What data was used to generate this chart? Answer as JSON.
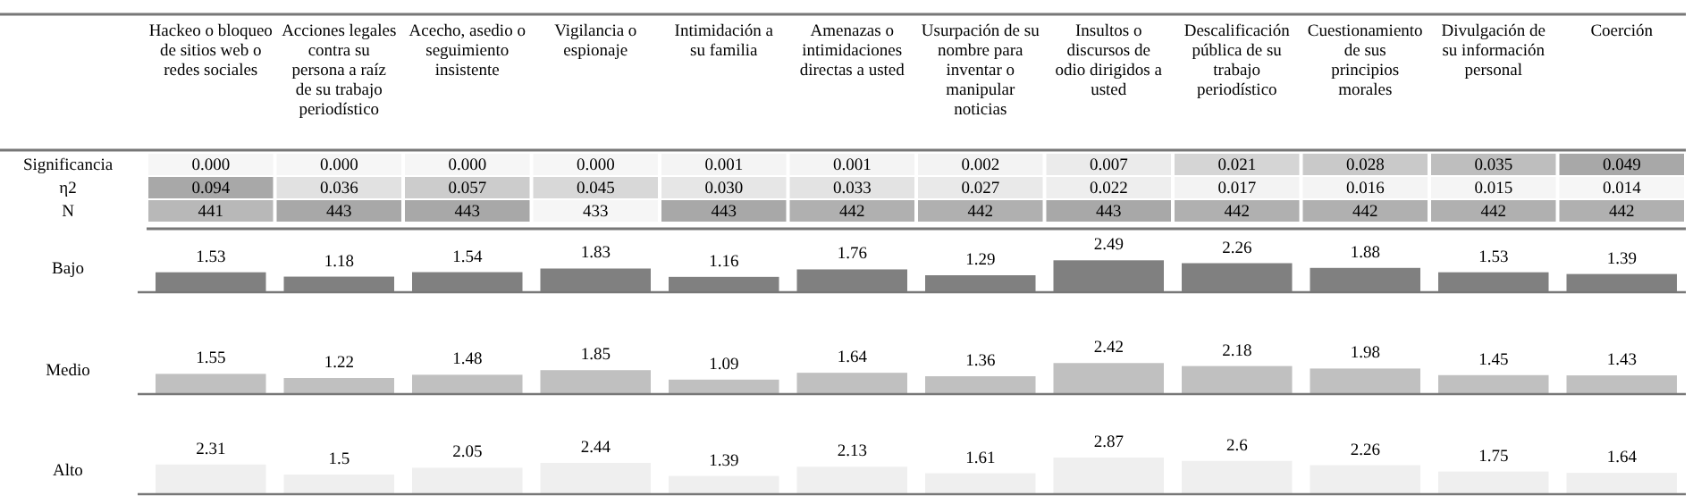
{
  "chart_data": [
    {
      "type": "heatmap",
      "categories": [
        "Hackeo o bloqueo de sitios web o redes sociales",
        "Acciones legales contra su persona a raíz de su trabajo periodístico",
        "Acecho, asedio o seguimiento insistente",
        "Vigilancia o espionaje",
        "Intimidación a su familia",
        "Amenazas o intimidaciones directas a usted",
        "Usurpación de su nombre para inventar o manipular noticias",
        "Insultos o discursos de odio dirigidos a usted",
        "Descalificación pública de su trabajo periodístico",
        "Cuestionamiento de sus principios morales",
        "Divulgación de su información personal",
        "Coerción"
      ],
      "y_categories": [
        "Significancia",
        "η2",
        "N"
      ],
      "cells": [
        [
          0,
          0,
          0,
          0,
          0.001,
          0.001,
          0.002,
          0.007,
          0.021,
          0.028,
          0.035,
          0.049
        ],
        [
          0.094,
          0.036,
          0.057,
          0.045,
          0.03,
          0.033,
          0.027,
          0.022,
          0.017,
          0.016,
          0.015,
          0.014
        ],
        [
          441,
          443,
          443,
          433,
          443,
          442,
          442,
          443,
          442,
          442,
          442,
          442
        ]
      ],
      "cell_labels": [
        [
          "0.000",
          "0.000",
          "0.000",
          "0.000",
          "0.001",
          "0.001",
          "0.002",
          "0.007",
          "0.021",
          "0.028",
          "0.035",
          "0.049"
        ],
        [
          "0.094",
          "0.036",
          "0.057",
          "0.045",
          "0.030",
          "0.033",
          "0.027",
          "0.022",
          "0.017",
          "0.016",
          "0.015",
          "0.014"
        ],
        [
          "441",
          "443",
          "443",
          "433",
          "443",
          "442",
          "442",
          "443",
          "442",
          "442",
          "442",
          "442"
        ]
      ]
    },
    {
      "type": "bar",
      "title": "Bajo",
      "categories": [
        null,
        null,
        null,
        null,
        null,
        null,
        null,
        null,
        null,
        null,
        null,
        null
      ],
      "values": [
        1.53,
        1.18,
        1.54,
        1.83,
        1.16,
        1.76,
        1.29,
        2.49,
        2.26,
        1.88,
        1.53,
        1.39
      ],
      "color": "#808080",
      "data_labels": true
    },
    {
      "type": "bar",
      "title": "Medio",
      "categories": [
        null,
        null,
        null,
        null,
        null,
        null,
        null,
        null,
        null,
        null,
        null,
        null
      ],
      "values": [
        1.55,
        1.22,
        1.48,
        1.85,
        1.09,
        1.64,
        1.36,
        2.42,
        2.18,
        1.98,
        1.45,
        1.43
      ],
      "color": "#c0c0c0",
      "data_labels": true
    },
    {
      "type": "bar",
      "title": "Alto",
      "categories": [
        null,
        null,
        null,
        null,
        null,
        null,
        null,
        null,
        null,
        null,
        null,
        null
      ],
      "values": [
        2.31,
        1.5,
        2.05,
        2.44,
        1.39,
        2.13,
        1.61,
        2.87,
        2.6,
        2.26,
        1.75,
        1.64
      ],
      "color": "#efefef",
      "data_labels": true
    }
  ]
}
